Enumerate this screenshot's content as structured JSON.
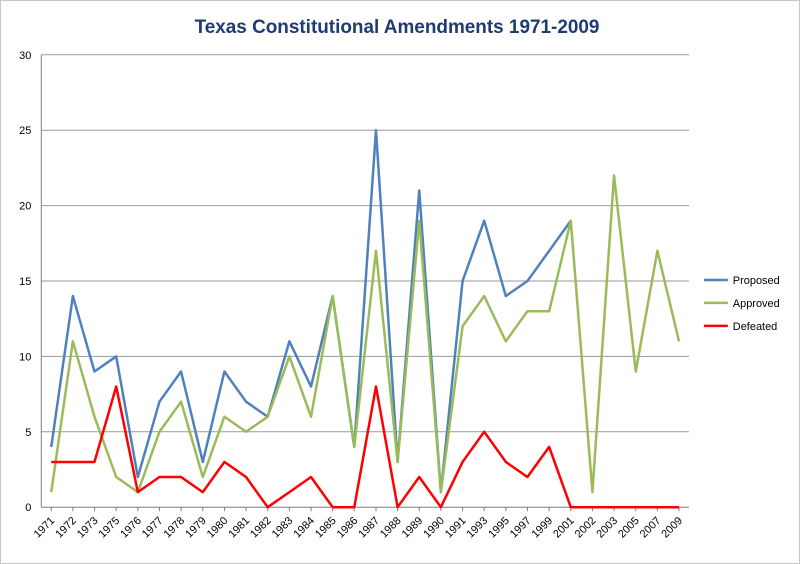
{
  "chart_data": {
    "type": "line",
    "title": "Texas Constitutional Amendments 1971-2009",
    "xlabel": "",
    "ylabel": "",
    "ylim": [
      0,
      30
    ],
    "yticks": [
      "0",
      "5",
      "10",
      "15",
      "20",
      "25",
      "30"
    ],
    "grid": true,
    "legend_position": "right",
    "categories": [
      "1971",
      "1972",
      "1973",
      "1975",
      "1976",
      "1977",
      "1978",
      "1979",
      "1980",
      "1981",
      "1982",
      "1983",
      "1984",
      "1985",
      "1986",
      "1987",
      "1988",
      "1989",
      "1990",
      "1991",
      "1993",
      "1995",
      "1997",
      "1999",
      "2001",
      "2002",
      "2003",
      "2005",
      "2007",
      "2009"
    ],
    "series": [
      {
        "name": "Proposed",
        "color": "#4f81bd",
        "values": [
          4,
          14,
          9,
          10,
          2,
          7,
          9,
          3,
          9,
          7,
          6,
          11,
          8,
          14,
          4,
          25,
          3,
          21,
          1,
          15,
          19,
          14,
          15,
          17,
          19,
          null,
          null,
          null,
          null,
          null
        ]
      },
      {
        "name": "Approved",
        "color": "#9bbb59",
        "values": [
          1,
          11,
          6,
          2,
          1,
          5,
          7,
          2,
          6,
          5,
          6,
          10,
          6,
          14,
          4,
          17,
          3,
          19,
          1,
          12,
          14,
          11,
          13,
          13,
          19,
          1,
          22,
          9,
          17,
          11
        ]
      },
      {
        "name": "Defeated",
        "color": "#ff0000",
        "values": [
          3,
          3,
          3,
          8,
          1,
          2,
          2,
          1,
          3,
          2,
          0,
          1,
          2,
          0,
          0,
          8,
          0,
          2,
          0,
          3,
          5,
          3,
          2,
          4,
          0,
          0,
          0,
          0,
          0,
          0
        ]
      }
    ]
  }
}
